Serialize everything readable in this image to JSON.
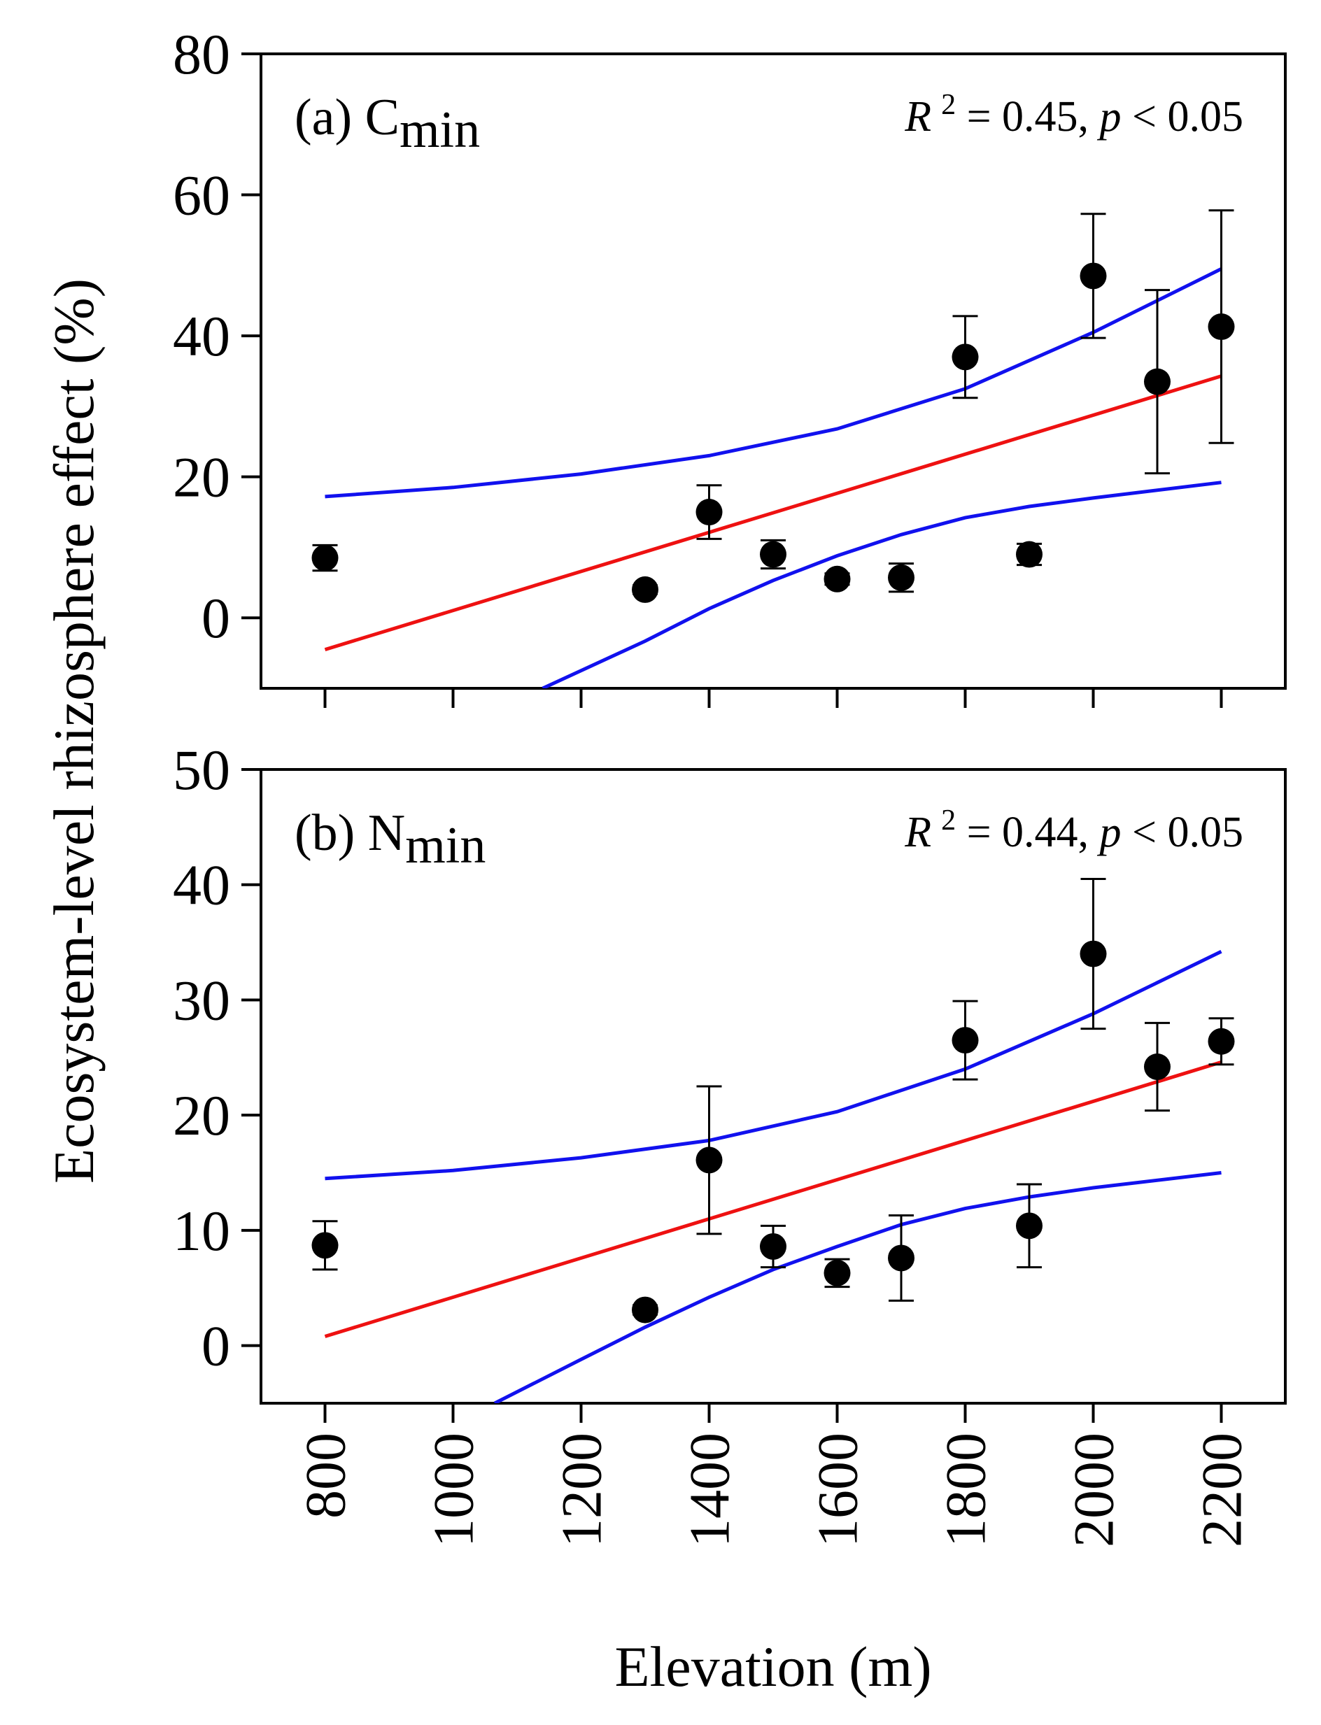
{
  "chart_data": [
    {
      "type": "scatter",
      "panel_label": "(a) C",
      "panel_subscript": "min",
      "stat_r": "R",
      "stat_sup": "2",
      "stat_mid": " = 0.45, ",
      "stat_p": "p",
      "stat_end": " < 0.05",
      "x": [
        800,
        1300,
        1400,
        1500,
        1600,
        1700,
        1800,
        1900,
        2000,
        2100,
        2200
      ],
      "y": [
        8.5,
        4.0,
        15.0,
        9.0,
        5.5,
        5.7,
        37.0,
        9.0,
        48.5,
        33.5,
        41.3
      ],
      "y_err": [
        1.8,
        0.6,
        3.8,
        2.0,
        0.8,
        2.0,
        5.8,
        1.5,
        8.8,
        13.0,
        16.5
      ],
      "fit": {
        "x": [
          800,
          2200
        ],
        "y": [
          -4.5,
          34.3
        ]
      },
      "ci_upper": {
        "x": [
          800,
          1000,
          1200,
          1400,
          1600,
          1800,
          2000,
          2200
        ],
        "y": [
          17.2,
          18.5,
          20.4,
          23.0,
          26.8,
          32.5,
          40.5,
          49.5
        ]
      },
      "ci_lower": {
        "x": [
          1140,
          1300,
          1400,
          1500,
          1600,
          1700,
          1800,
          1900,
          2000,
          2200
        ],
        "y": [
          -10,
          -3.3,
          1.3,
          5.3,
          8.8,
          11.8,
          14.2,
          15.8,
          17.0,
          19.2
        ]
      },
      "xlim": [
        700,
        2300
      ],
      "ylim": [
        -10,
        80
      ],
      "yticks": [
        0,
        20,
        40,
        60,
        80
      ],
      "colors": {
        "points": "#000000",
        "fit": "#ee1111",
        "ci": "#1111ee"
      }
    },
    {
      "type": "scatter",
      "panel_label": "(b) N",
      "panel_subscript": "min",
      "stat_r": "R",
      "stat_sup": "2",
      "stat_mid": " = 0.44, ",
      "stat_p": "p",
      "stat_end": " < 0.05",
      "x": [
        800,
        1300,
        1400,
        1500,
        1600,
        1700,
        1800,
        1900,
        2000,
        2100,
        2200
      ],
      "y": [
        8.7,
        3.1,
        16.1,
        8.6,
        6.3,
        7.6,
        26.5,
        10.4,
        34.0,
        24.2,
        26.4
      ],
      "y_err": [
        2.1,
        0.4,
        6.4,
        1.8,
        1.2,
        3.7,
        3.4,
        3.6,
        6.5,
        3.8,
        2.0
      ],
      "fit": {
        "x": [
          800,
          2200
        ],
        "y": [
          0.8,
          24.6
        ]
      },
      "ci_upper": {
        "x": [
          800,
          1000,
          1200,
          1400,
          1600,
          1800,
          2000,
          2200
        ],
        "y": [
          14.5,
          15.2,
          16.3,
          17.8,
          20.3,
          24.0,
          28.8,
          34.2
        ]
      },
      "ci_lower": {
        "x": [
          1065,
          1200,
          1300,
          1400,
          1500,
          1600,
          1700,
          1800,
          1900,
          2000,
          2200
        ],
        "y": [
          -5,
          -1.2,
          1.6,
          4.2,
          6.6,
          8.6,
          10.5,
          11.9,
          12.9,
          13.7,
          15.0
        ]
      },
      "xlim": [
        700,
        2300
      ],
      "ylim": [
        -5,
        50
      ],
      "yticks": [
        0,
        10,
        20,
        30,
        40,
        50
      ],
      "colors": {
        "points": "#000000",
        "fit": "#ee1111",
        "ci": "#1111ee"
      }
    }
  ],
  "shared": {
    "xticks": [
      800,
      1000,
      1200,
      1400,
      1600,
      1800,
      2000,
      2200
    ],
    "xlabel": "Elevation (m)",
    "ylabel": "Ecosystem-level rhizosphere effect (%)"
  }
}
